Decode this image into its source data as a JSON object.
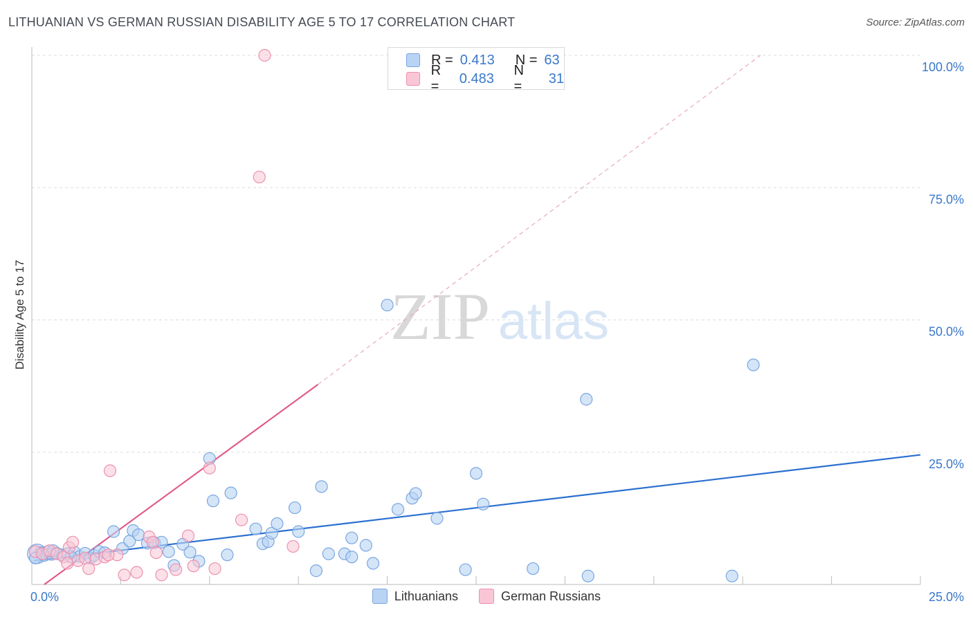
{
  "title": "LITHUANIAN VS GERMAN RUSSIAN DISABILITY AGE 5 TO 17 CORRELATION CHART",
  "source": "Source: ZipAtlas.com",
  "watermark": {
    "zip": "ZIP",
    "atlas": "atlas"
  },
  "colors": {
    "blue_fill": "#b8d3f4",
    "blue_stroke": "#7aa6e0",
    "blue_line": "#2a6fd1",
    "pink_fill": "#f9c6d6",
    "pink_stroke": "#ec91ae",
    "pink_line": "#e05a8c",
    "grid": "#dcdcdc",
    "axis_label": "#3a78c9"
  },
  "legend": {
    "rows": [
      {
        "r_label": "R =",
        "r_value": "0.413",
        "n_label": "N =",
        "n_value": "63"
      },
      {
        "r_label": "R =",
        "r_value": "0.483",
        "n_label": "N =",
        "n_value": "31"
      }
    ]
  },
  "bottom_legend": {
    "series1": "Lithuanians",
    "series2": "German Russians"
  },
  "chart_data": {
    "type": "scatter",
    "ylabel": "Disability Age 5 to 17",
    "xlabel": "",
    "xlim": [
      0,
      25
    ],
    "ylim": [
      0,
      100
    ],
    "x_tick_labels": [
      "0.0%",
      "25.0%"
    ],
    "y_tick_labels": [
      "25.0%",
      "50.0%",
      "75.0%",
      "100.0%"
    ],
    "y_ticks": [
      25,
      50,
      75,
      100
    ],
    "series": [
      {
        "name": "Lithuanians",
        "r": 0.413,
        "n": 63,
        "trend": {
          "x0": 0.05,
          "y0": 4.5,
          "x1": 25,
          "y1": 24.5
        },
        "points": [
          [
            0.15,
            5.8
          ],
          [
            0.25,
            6.0
          ],
          [
            0.35,
            5.5
          ],
          [
            0.45,
            6.2
          ],
          [
            0.55,
            5.7
          ],
          [
            0.7,
            5.9
          ],
          [
            0.85,
            5.6
          ],
          [
            1.0,
            5.8
          ],
          [
            1.2,
            6.1
          ],
          [
            1.35,
            5.3
          ],
          [
            1.5,
            5.9
          ],
          [
            1.65,
            5.0
          ],
          [
            1.75,
            5.5
          ],
          [
            1.9,
            6.2
          ],
          [
            2.05,
            6.0
          ],
          [
            2.3,
            10.0
          ],
          [
            2.55,
            6.8
          ],
          [
            2.75,
            8.2
          ],
          [
            2.85,
            10.2
          ],
          [
            3.0,
            9.4
          ],
          [
            3.25,
            7.8
          ],
          [
            3.45,
            7.9
          ],
          [
            3.65,
            8.0
          ],
          [
            3.85,
            6.2
          ],
          [
            4.0,
            3.6
          ],
          [
            4.25,
            7.6
          ],
          [
            4.45,
            6.1
          ],
          [
            4.7,
            4.4
          ],
          [
            5.0,
            23.8
          ],
          [
            5.1,
            15.8
          ],
          [
            5.5,
            5.6
          ],
          [
            5.6,
            17.3
          ],
          [
            6.3,
            10.5
          ],
          [
            6.5,
            7.7
          ],
          [
            6.65,
            8.1
          ],
          [
            6.75,
            9.7
          ],
          [
            6.9,
            11.5
          ],
          [
            7.4,
            14.5
          ],
          [
            7.5,
            10.0
          ],
          [
            8.0,
            2.6
          ],
          [
            8.15,
            18.5
          ],
          [
            8.35,
            5.8
          ],
          [
            8.8,
            5.8
          ],
          [
            9.0,
            5.2
          ],
          [
            9.0,
            8.8
          ],
          [
            9.4,
            7.4
          ],
          [
            9.6,
            4.0
          ],
          [
            10.0,
            52.8
          ],
          [
            10.3,
            14.2
          ],
          [
            10.7,
            16.3
          ],
          [
            10.8,
            17.2
          ],
          [
            11.4,
            12.5
          ],
          [
            12.2,
            2.8
          ],
          [
            12.5,
            21.0
          ],
          [
            12.7,
            15.2
          ],
          [
            14.1,
            3.0
          ],
          [
            15.6,
            35.0
          ],
          [
            15.65,
            1.6
          ],
          [
            19.7,
            1.6
          ],
          [
            20.3,
            41.5
          ],
          [
            0.1,
            5.0
          ],
          [
            0.6,
            6.4
          ],
          [
            1.1,
            5.2
          ]
        ]
      },
      {
        "name": "German Russians",
        "r": 0.483,
        "n": 31,
        "trend": {
          "x0": 0.35,
          "y0": 0.0,
          "x1": 8.05,
          "y1": 37.8
        },
        "trend_ext": {
          "x0": 8.05,
          "y0": 37.8,
          "x1": 20.5,
          "y1": 100
        },
        "points": [
          [
            0.1,
            6.2
          ],
          [
            0.3,
            5.8
          ],
          [
            0.5,
            6.4
          ],
          [
            0.7,
            5.8
          ],
          [
            0.9,
            5.2
          ],
          [
            1.0,
            4.0
          ],
          [
            1.05,
            7.0
          ],
          [
            1.15,
            8.0
          ],
          [
            1.3,
            4.5
          ],
          [
            1.5,
            5.0
          ],
          [
            1.6,
            3.0
          ],
          [
            1.8,
            4.8
          ],
          [
            2.05,
            5.2
          ],
          [
            2.2,
            21.5
          ],
          [
            2.4,
            5.6
          ],
          [
            2.6,
            1.8
          ],
          [
            2.95,
            2.3
          ],
          [
            3.3,
            9.0
          ],
          [
            3.4,
            8.0
          ],
          [
            3.5,
            6.0
          ],
          [
            3.65,
            1.8
          ],
          [
            4.05,
            2.8
          ],
          [
            4.4,
            9.2
          ],
          [
            4.55,
            3.5
          ],
          [
            5.0,
            22.0
          ],
          [
            5.15,
            3.0
          ],
          [
            5.9,
            12.2
          ],
          [
            6.4,
            77.0
          ],
          [
            6.55,
            100
          ],
          [
            7.35,
            7.2
          ],
          [
            2.15,
            5.6
          ]
        ]
      }
    ]
  }
}
